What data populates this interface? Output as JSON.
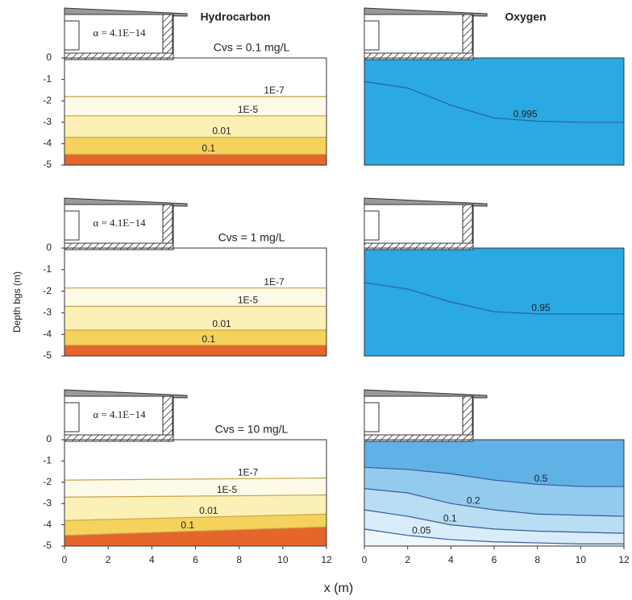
{
  "figure": {
    "xlabel": "x (m)",
    "ylabel": "Depth bgs (m)"
  },
  "chart_data": [
    {
      "type": "contour",
      "title": "Hydrocarbon",
      "annotation": "Cvs = 0.1 mg/L",
      "alpha_label": "α = 4.1E−14",
      "xlim": [
        0,
        12
      ],
      "ylim": [
        -5,
        0
      ],
      "yticks": [
        0,
        -1,
        -2,
        -3,
        -4,
        -5
      ],
      "band_colors": [
        "#ffffff",
        "#fdfbe8",
        "#fbf1b6",
        "#f5d25c",
        "#e5652a"
      ],
      "line_color": "#c9a24a",
      "contours": [
        {
          "level": {
            "value": 1e-07,
            "label": "1E-7"
          },
          "x": [
            0,
            12
          ],
          "y": [
            -1.8,
            -1.8
          ]
        },
        {
          "level": {
            "value": 1e-05,
            "label": "1E-5"
          },
          "x": [
            0,
            12
          ],
          "y": [
            -2.7,
            -2.7
          ]
        },
        {
          "level": 0.01,
          "x": [
            0,
            12
          ],
          "y": [
            -3.7,
            -3.7
          ]
        },
        {
          "level": 0.1,
          "x": [
            0,
            12
          ],
          "y": [
            -4.5,
            -4.5
          ]
        }
      ]
    },
    {
      "type": "contour",
      "title": "Oxygen",
      "xlim": [
        0,
        12
      ],
      "ylim": [
        -5,
        0
      ],
      "band_colors": [
        "#2aa9e2",
        "#2aa9e2"
      ],
      "line_color": "#2f5f9e",
      "contours": [
        {
          "level": 0.995,
          "x": [
            0,
            2,
            4,
            6,
            8,
            10,
            12
          ],
          "y": [
            -1.1,
            -1.4,
            -2.2,
            -2.8,
            -2.95,
            -3,
            -3
          ]
        }
      ]
    },
    {
      "type": "contour",
      "annotation": "Cvs = 1 mg/L",
      "alpha_label": "α = 4.1E−14",
      "xlim": [
        0,
        12
      ],
      "ylim": [
        -5,
        0
      ],
      "yticks": [
        0,
        -1,
        -2,
        -3,
        -4,
        -5
      ],
      "band_colors": [
        "#ffffff",
        "#fdfbe8",
        "#fbf1b6",
        "#f5d25c",
        "#e5652a"
      ],
      "line_color": "#c9a24a",
      "contours": [
        {
          "level": {
            "value": 1e-07,
            "label": "1E-7"
          },
          "x": [
            0,
            12
          ],
          "y": [
            -1.85,
            -1.85
          ]
        },
        {
          "level": {
            "value": 1e-05,
            "label": "1E-5"
          },
          "x": [
            0,
            12
          ],
          "y": [
            -2.7,
            -2.7
          ]
        },
        {
          "level": 0.01,
          "x": [
            0,
            12
          ],
          "y": [
            -3.8,
            -3.8
          ]
        },
        {
          "level": 0.1,
          "x": [
            0,
            12
          ],
          "y": [
            -4.5,
            -4.5
          ]
        }
      ]
    },
    {
      "type": "contour",
      "xlim": [
        0,
        12
      ],
      "ylim": [
        -5,
        0
      ],
      "band_colors": [
        "#2aa9e2",
        "#2aa9e2"
      ],
      "line_color": "#2f5f9e",
      "contours": [
        {
          "level": 0.95,
          "x": [
            0,
            2,
            4,
            6,
            8,
            10,
            12
          ],
          "y": [
            -1.6,
            -1.9,
            -2.5,
            -2.95,
            -3.05,
            -3.05,
            -3.05
          ]
        }
      ]
    },
    {
      "type": "contour",
      "annotation": "Cvs = 10 mg/L",
      "alpha_label": "α = 4.1E−14",
      "xlim": [
        0,
        12
      ],
      "ylim": [
        -5,
        0
      ],
      "yticks": [
        0,
        -1,
        -2,
        -3,
        -4,
        -5
      ],
      "xticks": [
        0,
        2,
        4,
        6,
        8,
        10,
        12
      ],
      "band_colors": [
        "#ffffff",
        "#fdfbe8",
        "#fbf1b6",
        "#f5d25c",
        "#e5652a"
      ],
      "line_color": "#c9a24a",
      "contours": [
        {
          "level": {
            "value": 1e-07,
            "label": "1E-7"
          },
          "x": [
            0,
            12
          ],
          "y": [
            -1.9,
            -1.8
          ]
        },
        {
          "level": {
            "value": 1e-05,
            "label": "1E-5"
          },
          "x": [
            0,
            12
          ],
          "y": [
            -2.7,
            -2.6
          ]
        },
        {
          "level": 0.01,
          "x": [
            0,
            12
          ],
          "y": [
            -3.8,
            -3.5
          ]
        },
        {
          "level": 0.1,
          "x": [
            0,
            12
          ],
          "y": [
            -4.5,
            -4.1
          ]
        }
      ]
    },
    {
      "type": "contour",
      "xlim": [
        0,
        12
      ],
      "ylim": [
        -5,
        0
      ],
      "xticks": [
        0,
        2,
        4,
        6,
        8,
        10,
        12
      ],
      "band_colors": [
        "#5fb1e6",
        "#93cbef",
        "#b9def4",
        "#d8edf9",
        "#edf7fc"
      ],
      "line_color": "#3a5a9a",
      "contours": [
        {
          "level": 0.5,
          "x": [
            0,
            2,
            4,
            6,
            8,
            10,
            12
          ],
          "y": [
            -1.3,
            -1.4,
            -1.6,
            -1.9,
            -2.1,
            -2.2,
            -2.2
          ]
        },
        {
          "level": 0.2,
          "x": [
            0,
            2,
            4,
            6,
            8,
            10,
            12
          ],
          "y": [
            -2.3,
            -2.5,
            -3,
            -3.3,
            -3.5,
            -3.55,
            -3.6
          ]
        },
        {
          "level": 0.1,
          "x": [
            0,
            2,
            4,
            6,
            8,
            10,
            12
          ],
          "y": [
            -3.3,
            -3.6,
            -4,
            -4.2,
            -4.3,
            -4.35,
            -4.4
          ]
        },
        {
          "level": 0.05,
          "x": [
            0,
            2,
            4,
            6,
            8,
            10,
            12
          ],
          "y": [
            -4.2,
            -4.5,
            -4.7,
            -4.8,
            -4.85,
            -4.9,
            -4.9
          ]
        }
      ]
    }
  ]
}
